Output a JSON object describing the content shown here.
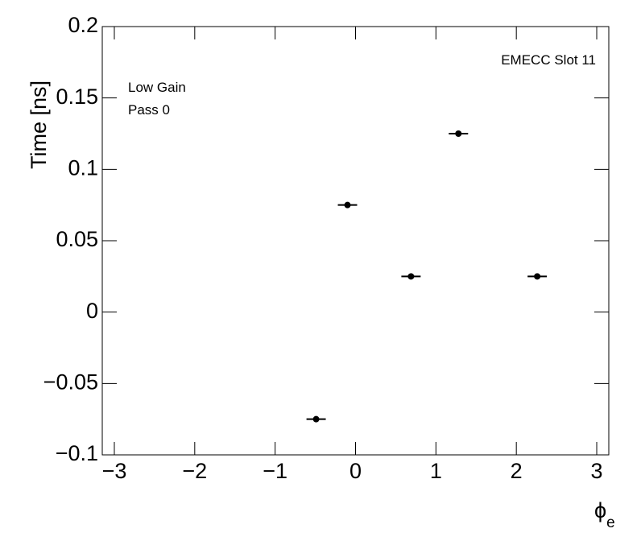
{
  "chart_data": {
    "type": "scatter",
    "ylabel": "Time [ns]",
    "xlabel_symbol": "ϕ",
    "xlabel_subscript": "e",
    "annotations": [
      "EMECC Slot 11",
      "Low Gain",
      "Pass 0"
    ],
    "x": [
      -0.49,
      -0.1,
      0.69,
      1.28,
      2.26
    ],
    "xerr": [
      0.12,
      0.12,
      0.12,
      0.12,
      0.12
    ],
    "values": [
      -0.075,
      0.075,
      0.025,
      0.125,
      0.025
    ],
    "color": "#000000",
    "xlim": [
      -3.15,
      3.15
    ],
    "xticks": [
      {
        "value": -3,
        "label": "−3"
      },
      {
        "value": -2,
        "label": "−2"
      },
      {
        "value": -1,
        "label": "−1"
      },
      0,
      1,
      2,
      3
    ],
    "ylim": [
      -0.1,
      0.2
    ],
    "yticks": [
      {
        "value": -0.1,
        "label": "−0.1"
      },
      {
        "value": -0.05,
        "label": "−0.05"
      },
      0,
      0.05,
      0.1,
      0.15,
      0.2
    ]
  }
}
